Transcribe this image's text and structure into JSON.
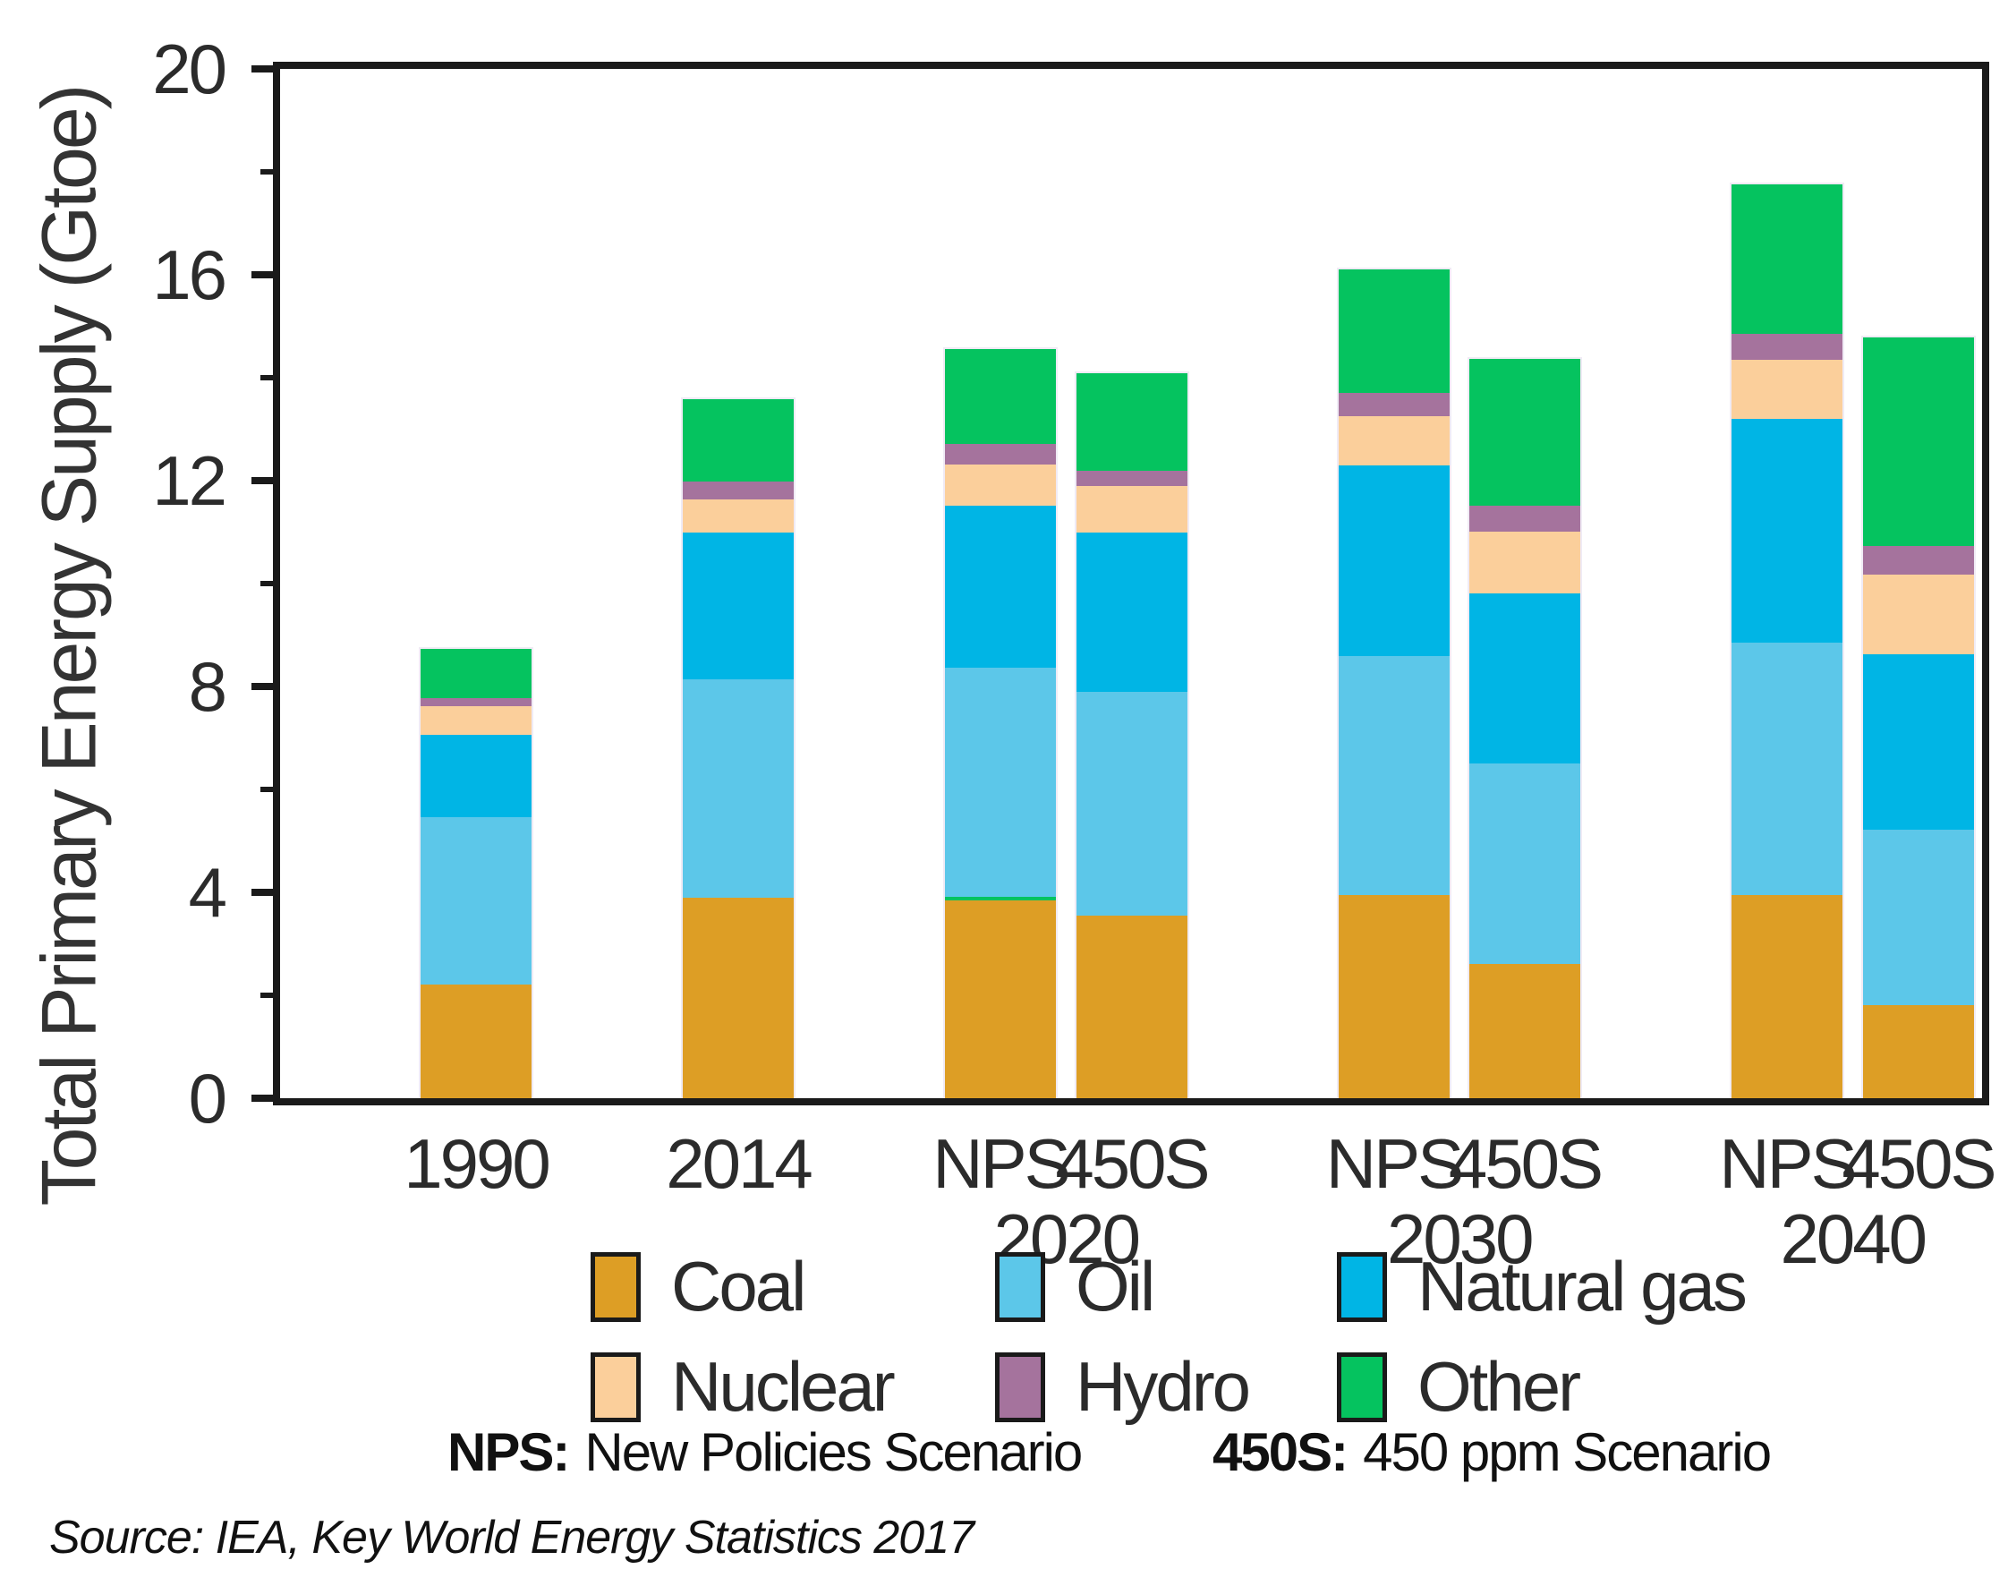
{
  "chart_data": {
    "type": "bar",
    "stacked": true,
    "title": "",
    "ylabel": "Total Primary Energy Supply (Gtoe)",
    "xlabel": "",
    "unit": "Gtoe",
    "ylim": [
      0,
      20
    ],
    "ytick_major": [
      0,
      4,
      8,
      12,
      16,
      20
    ],
    "ytick_minor": [
      2,
      6,
      10,
      14,
      18
    ],
    "grid": false,
    "legend_position": "bottom",
    "series": [
      {
        "name": "Coal",
        "color": "#DD9E25"
      },
      {
        "name": "Oil",
        "color": "#5CC7E9"
      },
      {
        "name": "Natural gas",
        "color": "#00B5E5"
      },
      {
        "name": "Nuclear",
        "color": "#FBCF9B"
      },
      {
        "name": "Hydro",
        "color": "#A5739D"
      },
      {
        "name": "Other",
        "color": "#05C35F"
      }
    ],
    "values_order": [
      "Coal",
      "Oil",
      "Natural gas",
      "Nuclear",
      "Hydro",
      "Other"
    ],
    "groups": [
      {
        "bottom_label": "",
        "bars": [
          {
            "top_label": "1990",
            "values": [
              2.2,
              3.25,
              1.6,
              0.55,
              0.15,
              0.95
            ],
            "total": 8.7
          }
        ]
      },
      {
        "bottom_label": "",
        "bars": [
          {
            "top_label": "2014",
            "values": [
              3.9,
              4.25,
              2.85,
              0.65,
              0.35,
              1.6
            ],
            "total": 13.6
          }
        ]
      },
      {
        "bottom_label": "2020",
        "bars": [
          {
            "top_label": "NPS",
            "values": [
              3.85,
              4.45,
              3.15,
              0.8,
              0.4,
              1.85
            ],
            "total": 14.5,
            "green_sliver_above_coal": true
          },
          {
            "top_label": "450S",
            "values": [
              3.55,
              4.35,
              3.1,
              0.9,
              0.3,
              1.9
            ],
            "total": 14.1
          }
        ]
      },
      {
        "bottom_label": "2030",
        "bars": [
          {
            "top_label": "NPS",
            "values": [
              3.95,
              4.65,
              3.7,
              0.95,
              0.45,
              2.4
            ],
            "total": 16.1
          },
          {
            "top_label": "450S",
            "values": [
              2.6,
              3.9,
              3.3,
              1.2,
              0.5,
              2.85
            ],
            "total": 14.35
          }
        ]
      },
      {
        "bottom_label": "2040",
        "bars": [
          {
            "top_label": "NPS",
            "values": [
              3.95,
              4.9,
              4.35,
              1.15,
              0.5,
              2.9
            ],
            "total": 17.75
          },
          {
            "top_label": "450S",
            "values": [
              1.8,
              3.4,
              3.4,
              1.55,
              0.55,
              4.05
            ],
            "total": 14.75
          }
        ]
      }
    ]
  },
  "notes": {
    "scenario_definitions": [
      {
        "abbr": "NPS:",
        "definition": "New Policies Scenario"
      },
      {
        "abbr": "450S:",
        "definition": "450 ppm Scenario"
      }
    ]
  },
  "source": {
    "text": "Source: IEA, Key World Energy Statistics 2017"
  }
}
